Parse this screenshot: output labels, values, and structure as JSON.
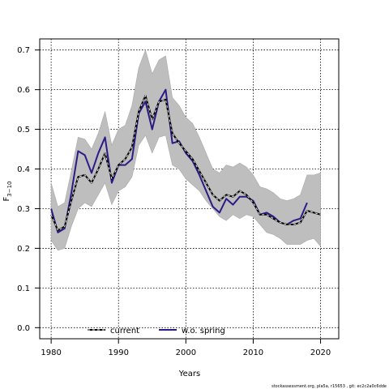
{
  "chart_data": {
    "type": "line",
    "xlabel": "Years",
    "ylabel_main": "F",
    "ylabel_sub": "3−10",
    "xlim": [
      1978.3,
      2022.7
    ],
    "ylim": [
      -0.028,
      0.728
    ],
    "xticks": [
      1980,
      1990,
      2000,
      2010,
      2020
    ],
    "yticks": [
      0.0,
      0.1,
      0.2,
      0.3,
      0.4,
      0.5,
      0.6,
      0.7
    ],
    "ytick_labels": [
      "0.0",
      "0.1",
      "0.2",
      "0.3",
      "0.4",
      "0.5",
      "0.6",
      "0.7"
    ],
    "grid": true,
    "legend_position": "bottom-left",
    "band": {
      "x": [
        1980,
        1981,
        1982,
        1983,
        1984,
        1985,
        1986,
        1987,
        1988,
        1989,
        1990,
        1991,
        1992,
        1993,
        1994,
        1995,
        1996,
        1997,
        1998,
        1999,
        2000,
        2001,
        2002,
        2003,
        2004,
        2005,
        2006,
        2007,
        2008,
        2009,
        2010,
        2011,
        2012,
        2013,
        2014,
        2015,
        2016,
        2017,
        2018,
        2019,
        2020
      ],
      "upper": [
        0.365,
        0.305,
        0.315,
        0.395,
        0.48,
        0.475,
        0.45,
        0.49,
        0.545,
        0.46,
        0.5,
        0.51,
        0.56,
        0.655,
        0.7,
        0.64,
        0.675,
        0.685,
        0.58,
        0.56,
        0.53,
        0.515,
        0.48,
        0.44,
        0.4,
        0.39,
        0.41,
        0.405,
        0.415,
        0.405,
        0.385,
        0.355,
        0.35,
        0.34,
        0.325,
        0.32,
        0.325,
        0.335,
        0.385,
        0.385,
        0.39
      ],
      "lower": [
        0.22,
        0.195,
        0.2,
        0.255,
        0.3,
        0.315,
        0.305,
        0.335,
        0.365,
        0.31,
        0.345,
        0.355,
        0.38,
        0.46,
        0.485,
        0.44,
        0.48,
        0.485,
        0.41,
        0.4,
        0.375,
        0.36,
        0.345,
        0.32,
        0.3,
        0.28,
        0.27,
        0.285,
        0.275,
        0.285,
        0.28,
        0.26,
        0.24,
        0.235,
        0.225,
        0.21,
        0.21,
        0.21,
        0.22,
        0.225,
        0.205
      ]
    },
    "series": [
      {
        "name": "current",
        "color": "#000000",
        "dashed": true,
        "x": [
          1980,
          1981,
          1982,
          1983,
          1984,
          1985,
          1986,
          1987,
          1988,
          1989,
          1990,
          1991,
          1992,
          1993,
          1994,
          1995,
          1996,
          1997,
          1998,
          1999,
          2000,
          2001,
          2002,
          2003,
          2004,
          2005,
          2006,
          2007,
          2008,
          2009,
          2010,
          2011,
          2012,
          2013,
          2014,
          2015,
          2016,
          2017,
          2018,
          2019,
          2020
        ],
        "values": [
          0.285,
          0.245,
          0.255,
          0.32,
          0.38,
          0.385,
          0.365,
          0.4,
          0.44,
          0.375,
          0.41,
          0.425,
          0.455,
          0.545,
          0.585,
          0.525,
          0.57,
          0.575,
          0.49,
          0.465,
          0.445,
          0.425,
          0.395,
          0.365,
          0.335,
          0.32,
          0.335,
          0.33,
          0.345,
          0.335,
          0.315,
          0.285,
          0.285,
          0.275,
          0.265,
          0.26,
          0.26,
          0.265,
          0.295,
          0.29,
          0.285
        ]
      },
      {
        "name": "w.o. spring",
        "color": "#2e1a87",
        "dashed": false,
        "x": [
          1980,
          1981,
          1982,
          1983,
          1984,
          1985,
          1986,
          1987,
          1988,
          1989,
          1990,
          1991,
          1992,
          1993,
          1994,
          1995,
          1996,
          1997,
          1998,
          1999,
          2000,
          2001,
          2002,
          2003,
          2004,
          2005,
          2006,
          2007,
          2008,
          2009,
          2010,
          2011,
          2012,
          2013,
          2014,
          2015,
          2016,
          2017,
          2018
        ],
        "values": [
          0.3,
          0.24,
          0.25,
          0.34,
          0.445,
          0.435,
          0.39,
          0.44,
          0.48,
          0.365,
          0.41,
          0.41,
          0.425,
          0.54,
          0.57,
          0.5,
          0.57,
          0.6,
          0.465,
          0.47,
          0.44,
          0.42,
          0.385,
          0.345,
          0.305,
          0.29,
          0.325,
          0.31,
          0.33,
          0.33,
          0.32,
          0.285,
          0.29,
          0.28,
          0.265,
          0.26,
          0.27,
          0.275,
          0.315
        ]
      }
    ]
  },
  "footnote": "stockassessment.org, pla5a, r15653 , git: ec2c2a0c6dde",
  "colors": {
    "band_fill": "#bebebe",
    "band_stroke": "#a8a8a8",
    "grid": "#000000",
    "axes": "#000000"
  }
}
